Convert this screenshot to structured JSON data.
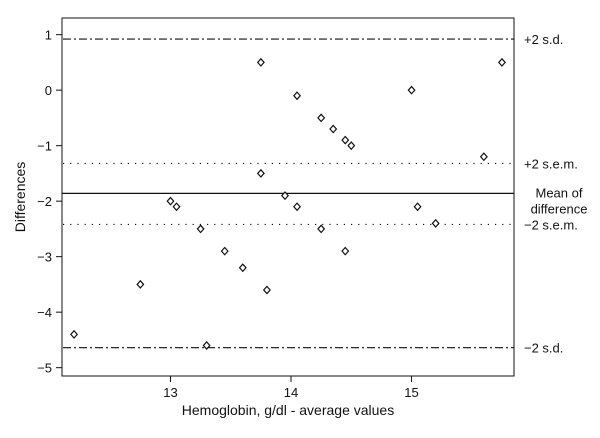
{
  "chart_data": {
    "type": "scatter",
    "xlabel": "Hemoglobin, g/dl - average values",
    "ylabel": "Differences",
    "xlim": [
      12.1,
      15.85
    ],
    "ylim": [
      -5.15,
      1.3
    ],
    "x_ticks": [
      "13",
      "14",
      "15"
    ],
    "y_ticks": [
      "1",
      "0",
      "−1",
      "−2",
      "−3",
      "−4",
      "−5"
    ],
    "grid": false,
    "mean_difference": -1.86,
    "reference_lines": [
      {
        "label": "+2 s.d.",
        "y": 0.92,
        "style": "dashdot"
      },
      {
        "label": "+2 s.e.m.",
        "y": -1.32,
        "style": "dotted"
      },
      {
        "label": "−2 s.e.m.",
        "y": -2.42,
        "style": "dotted"
      },
      {
        "label": "−2 s.d.",
        "y": -4.64,
        "style": "dashdot"
      }
    ],
    "mean_label_lines": [
      "Mean of",
      "difference"
    ],
    "points": [
      {
        "x": 12.2,
        "y": -4.4
      },
      {
        "x": 12.75,
        "y": -3.5
      },
      {
        "x": 13.0,
        "y": -2.0
      },
      {
        "x": 13.05,
        "y": -2.1
      },
      {
        "x": 13.25,
        "y": -2.5
      },
      {
        "x": 13.3,
        "y": -4.6
      },
      {
        "x": 13.45,
        "y": -2.9
      },
      {
        "x": 13.6,
        "y": -3.2
      },
      {
        "x": 13.75,
        "y": 0.5
      },
      {
        "x": 13.75,
        "y": -1.5
      },
      {
        "x": 13.8,
        "y": -3.6
      },
      {
        "x": 13.95,
        "y": -1.9
      },
      {
        "x": 14.05,
        "y": -0.1
      },
      {
        "x": 14.05,
        "y": -2.1
      },
      {
        "x": 14.25,
        "y": -0.5
      },
      {
        "x": 14.25,
        "y": -2.5
      },
      {
        "x": 14.35,
        "y": -0.7
      },
      {
        "x": 14.45,
        "y": -0.9
      },
      {
        "x": 14.45,
        "y": -2.9
      },
      {
        "x": 14.5,
        "y": -1.0
      },
      {
        "x": 15.0,
        "y": 0.0
      },
      {
        "x": 15.05,
        "y": -2.1
      },
      {
        "x": 15.2,
        "y": -2.4
      },
      {
        "x": 15.6,
        "y": -1.2
      },
      {
        "x": 15.75,
        "y": 0.5
      }
    ]
  }
}
